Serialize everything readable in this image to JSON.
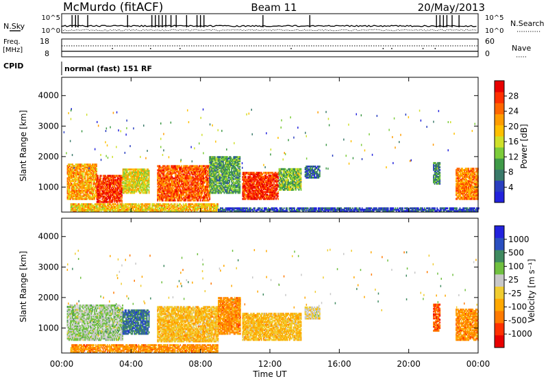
{
  "header": {
    "title": "McMurdo (fitACF)",
    "beam": "Beam 11",
    "date": "20/May/2013"
  },
  "panels": {
    "nsky": {
      "label": "N.Sky",
      "tick_high": "10^5",
      "tick_low": "10^0",
      "right_high": "10^5",
      "right_low": "10^0",
      "right_label": "N.Search"
    },
    "freq": {
      "label1": "Freq.",
      "label2": "[MHz]",
      "tick_high": "18",
      "tick_low": "8",
      "right_high": "60",
      "right_low": "0",
      "right_label": "Nave"
    },
    "cpid": {
      "label": "CPID",
      "mode": "normal (fast) 151 RF"
    }
  },
  "colors": {
    "power": [
      "#2222dd",
      "#2a3fc0",
      "#3a7a6a",
      "#3f9a48",
      "#7ccc3a",
      "#cfe02a",
      "#ffc000",
      "#ff9c00",
      "#ff6600",
      "#ff3000",
      "#e80000"
    ],
    "velocity": [
      "#e80000",
      "#ff3000",
      "#ff7a00",
      "#ffa800",
      "#f0cc30",
      "#c8c8c8",
      "#70c040",
      "#3f8a60",
      "#2a4fc0",
      "#2222dd"
    ]
  },
  "chart_data": [
    {
      "type": "heatmap",
      "name": "power",
      "ylabel": "Slant Range [km]",
      "xlabel": "Time UT",
      "x_ticks": [
        "00:00",
        "04:00",
        "08:00",
        "12:00",
        "16:00",
        "20:00",
        "00:00"
      ],
      "x_hours": [
        0,
        4,
        8,
        12,
        16,
        20,
        24
      ],
      "ylim": [
        180,
        4600
      ],
      "y_ticks": [
        1000,
        2000,
        3000,
        4000
      ],
      "colorbar": {
        "label": "Power [dB]",
        "ticks": [
          "4",
          "8",
          "12",
          "16",
          "20",
          "24",
          "28"
        ],
        "range": [
          0,
          30
        ]
      },
      "echo_bands": [
        {
          "t0": 0.3,
          "t1": 2.0,
          "r0": 600,
          "r1": 1750,
          "v": 20
        },
        {
          "t0": 2.0,
          "t1": 3.5,
          "r0": 500,
          "r1": 1400,
          "v": 26
        },
        {
          "t0": 3.5,
          "t1": 5.0,
          "r0": 800,
          "r1": 1600,
          "v": 16
        },
        {
          "t0": 5.5,
          "t1": 8.5,
          "r0": 550,
          "r1": 1700,
          "v": 24
        },
        {
          "t0": 8.5,
          "t1": 10.3,
          "r0": 800,
          "r1": 2000,
          "v": 10
        },
        {
          "t0": 10.4,
          "t1": 12.5,
          "r0": 600,
          "r1": 1500,
          "v": 26
        },
        {
          "t0": 12.5,
          "t1": 13.8,
          "r0": 900,
          "r1": 1600,
          "v": 12
        },
        {
          "t0": 14.0,
          "t1": 14.9,
          "r0": 1300,
          "r1": 1700,
          "v": 6
        },
        {
          "t0": 21.4,
          "t1": 21.8,
          "r0": 1100,
          "r1": 1800,
          "v": 8
        },
        {
          "t0": 22.7,
          "t1": 24.0,
          "r0": 600,
          "r1": 1600,
          "v": 22
        },
        {
          "t0": 0.5,
          "t1": 9.0,
          "r0": 200,
          "r1": 450,
          "v": 18
        },
        {
          "t0": 9.0,
          "t1": 24.0,
          "r0": 200,
          "r1": 300,
          "v": 4
        }
      ]
    },
    {
      "type": "heatmap",
      "name": "velocity",
      "ylabel": "Slant Range [km]",
      "xlabel": "Time UT",
      "x_ticks": [
        "00:00",
        "04:00",
        "08:00",
        "12:00",
        "16:00",
        "20:00",
        "00:00"
      ],
      "x_hours": [
        0,
        4,
        8,
        12,
        16,
        20,
        24
      ],
      "ylim": [
        180,
        4600
      ],
      "y_ticks": [
        1000,
        2000,
        3000,
        4000
      ],
      "colorbar": {
        "label": "Velocity [m s⁻¹]",
        "ticks": [
          "1000",
          "500",
          "100",
          "25",
          "-25",
          "-100",
          "-500",
          "-1000"
        ]
      },
      "echo_bands": [
        {
          "t0": 0.3,
          "t1": 3.5,
          "r0": 600,
          "r1": 1750,
          "v": 1
        },
        {
          "t0": 3.5,
          "t1": 5.0,
          "r0": 800,
          "r1": 1600,
          "v": 3
        },
        {
          "t0": 5.5,
          "t1": 9.0,
          "r0": 550,
          "r1": 1700,
          "v": -1
        },
        {
          "t0": 9.0,
          "t1": 10.3,
          "r0": 800,
          "r1": 2000,
          "v": -2
        },
        {
          "t0": 10.4,
          "t1": 13.8,
          "r0": 600,
          "r1": 1500,
          "v": -1
        },
        {
          "t0": 14.0,
          "t1": 14.9,
          "r0": 1300,
          "r1": 1700,
          "v": 0
        },
        {
          "t0": 21.4,
          "t1": 21.8,
          "r0": 900,
          "r1": 1800,
          "v": -3
        },
        {
          "t0": 22.7,
          "t1": 24.0,
          "r0": 600,
          "r1": 1600,
          "v": -2
        },
        {
          "t0": 0.5,
          "t1": 9.0,
          "r0": 200,
          "r1": 450,
          "v": -2
        }
      ]
    }
  ]
}
